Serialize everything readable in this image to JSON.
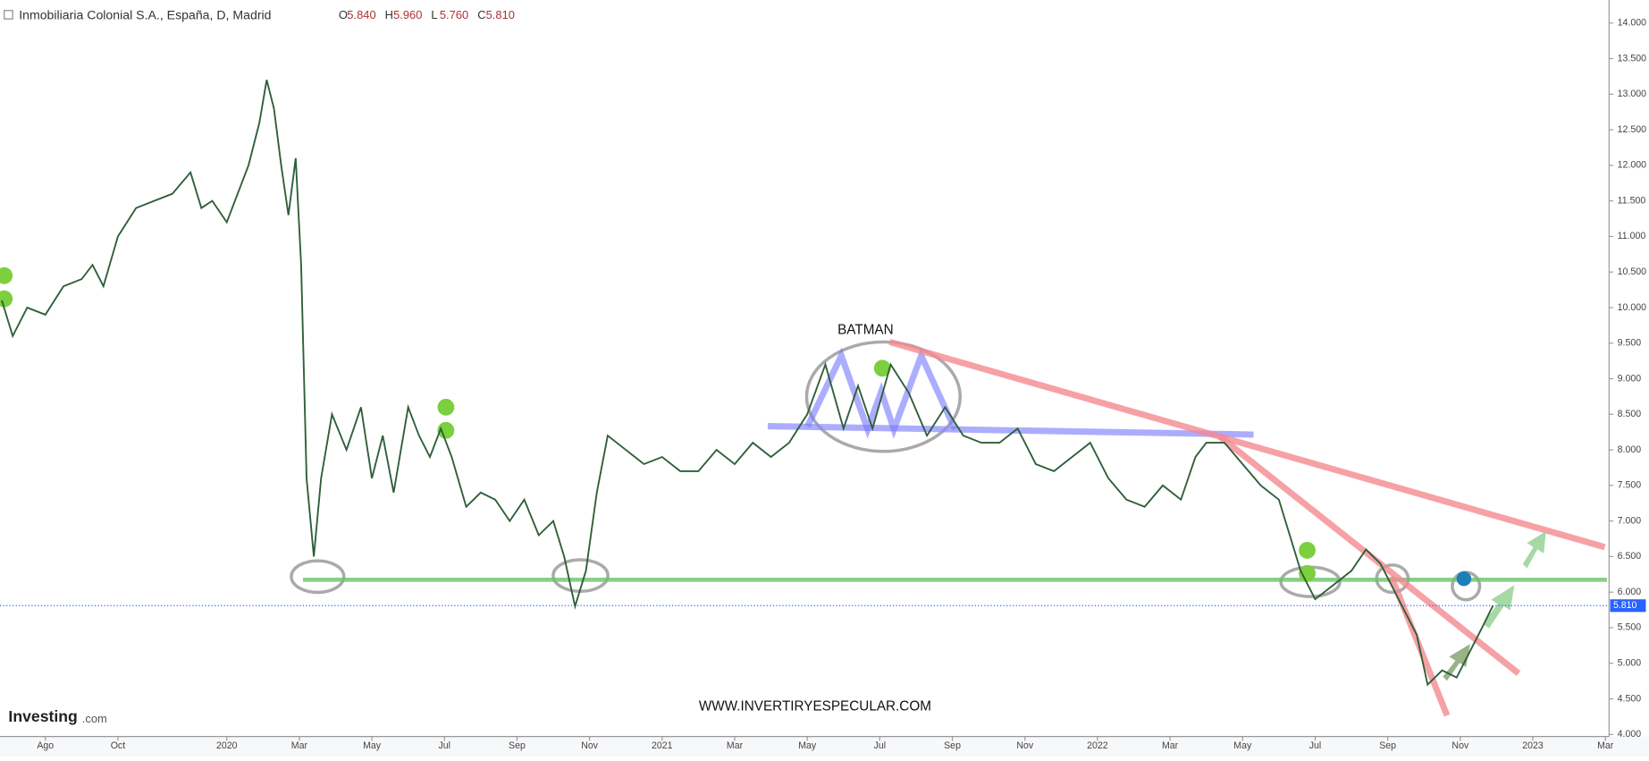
{
  "header": {
    "title": "Inmobiliaria Colonial S.A., España, D, Madrid",
    "ohlc": [
      {
        "label": "O",
        "value": "5.840"
      },
      {
        "label": "H",
        "value": "5.960"
      },
      {
        "label": "L",
        "value": "5.760"
      },
      {
        "label": "C",
        "value": "5.810"
      }
    ]
  },
  "chart_data": {
    "type": "line",
    "annotations": {
      "pattern": "BATMAN",
      "watermark": "WWW.INVERTIRYESPECULAR.COM",
      "logo": "Investing",
      "logo_suffix": ".com"
    },
    "x": [
      -1.2,
      -0.9,
      -0.5,
      0,
      0.5,
      1,
      1.3,
      1.6,
      2,
      2.5,
      3,
      3.5,
      4,
      4.3,
      4.6,
      5,
      5.3,
      5.6,
      5.9,
      6.1,
      6.3,
      6.5,
      6.7,
      6.9,
      7.05,
      7.2,
      7.4,
      7.6,
      7.9,
      8.3,
      8.7,
      9.0,
      9.3,
      9.6,
      10.0,
      10.3,
      10.6,
      10.9,
      11.2,
      11.6,
      12.0,
      12.4,
      12.8,
      13.2,
      13.6,
      14.0,
      14.3,
      14.6,
      14.9,
      15.2,
      15.5,
      16.0,
      16.5,
      17.0,
      17.5,
      18.0,
      18.5,
      19,
      19.5,
      20,
      20.5,
      21,
      21.5,
      22,
      22.4,
      22.8,
      23.3,
      23.8,
      24.3,
      24.8,
      25.3,
      25.8,
      26.3,
      26.8,
      27.3,
      27.8,
      28.3,
      28.8,
      29.3,
      29.8,
      30.3,
      30.8,
      31.3,
      31.7,
      32.0,
      32.5,
      33.0,
      33.5,
      34.0,
      34.3,
      34.6,
      35.0,
      35.5,
      36.0,
      36.4,
      36.8,
      37.1,
      37.4,
      37.8,
      38.1,
      38.5,
      38.9,
      39.3,
      39.6,
      39.9
    ],
    "series": [
      {
        "name": "Inmobiliaria Colonial S.A.",
        "color": "#2f5f3a",
        "values": [
          10.1,
          9.6,
          10.0,
          9.9,
          10.3,
          10.4,
          10.6,
          10.3,
          11.0,
          11.4,
          11.5,
          11.6,
          11.9,
          11.4,
          11.5,
          11.2,
          11.6,
          12.0,
          12.6,
          13.2,
          12.8,
          12.0,
          11.3,
          12.1,
          10.6,
          7.6,
          6.5,
          7.6,
          8.5,
          8.0,
          8.6,
          7.6,
          8.2,
          7.4,
          8.6,
          8.2,
          7.9,
          8.3,
          7.9,
          7.2,
          7.4,
          7.3,
          7.0,
          7.3,
          6.8,
          7.0,
          6.5,
          5.8,
          6.3,
          7.4,
          8.2,
          8.0,
          7.8,
          7.9,
          7.7,
          7.7,
          8.0,
          7.8,
          8.1,
          7.9,
          8.1,
          8.5,
          9.2,
          8.3,
          8.9,
          8.3,
          9.2,
          8.8,
          8.2,
          8.6,
          8.2,
          8.1,
          8.1,
          8.3,
          7.8,
          7.7,
          7.9,
          8.1,
          7.6,
          7.3,
          7.2,
          7.5,
          7.3,
          7.9,
          8.1,
          8.1,
          7.8,
          7.5,
          7.3,
          6.8,
          6.3,
          5.9,
          6.1,
          6.3,
          6.6,
          6.4,
          6.1,
          5.8,
          5.4,
          4.7,
          4.9,
          4.8,
          5.2,
          5.5,
          5.81
        ]
      }
    ],
    "price_line": {
      "value": 5.81,
      "label": "5.810",
      "color": "#2962ff"
    },
    "xlim": [
      -1.25,
      43.1
    ],
    "xticks": [
      {
        "value": 0,
        "label": "Ago"
      },
      {
        "value": 2,
        "label": "Oct"
      },
      {
        "value": 5,
        "label": "2020"
      },
      {
        "value": 7,
        "label": "Mar"
      },
      {
        "value": 9,
        "label": "May"
      },
      {
        "value": 11,
        "label": "Jul"
      },
      {
        "value": 13,
        "label": "Sep"
      },
      {
        "value": 15,
        "label": "Nov"
      },
      {
        "value": 17,
        "label": "2021"
      },
      {
        "value": 19,
        "label": "Mar"
      },
      {
        "value": 21,
        "label": "May"
      },
      {
        "value": 23,
        "label": "Jul"
      },
      {
        "value": 25,
        "label": "Sep"
      },
      {
        "value": 27,
        "label": "Nov"
      },
      {
        "value": 29,
        "label": "2022"
      },
      {
        "value": 31,
        "label": "Mar"
      },
      {
        "value": 33,
        "label": "May"
      },
      {
        "value": 35,
        "label": "Jul"
      },
      {
        "value": 37,
        "label": "Sep"
      },
      {
        "value": 39,
        "label": "Nov"
      },
      {
        "value": 41,
        "label": "2023"
      },
      {
        "value": 43,
        "label": "Mar"
      }
    ],
    "ylim": [
      3.97,
      14.25
    ],
    "yticks": [
      {
        "value": 4,
        "label": "4.000"
      },
      {
        "value": 4.5,
        "label": "4.500"
      },
      {
        "value": 5,
        "label": "5.000"
      },
      {
        "value": 5.5,
        "label": "5.500"
      },
      {
        "value": 6,
        "label": "6.000"
      },
      {
        "value": 6.5,
        "label": "6.500"
      },
      {
        "value": 7,
        "label": "7.000"
      },
      {
        "value": 7.5,
        "label": "7.500"
      },
      {
        "value": 8,
        "label": "8.000"
      },
      {
        "value": 8.5,
        "label": "8.500"
      },
      {
        "value": 9,
        "label": "9.000"
      },
      {
        "value": 9.5,
        "label": "9.500"
      },
      {
        "value": 10,
        "label": "10.000"
      },
      {
        "value": 10.5,
        "label": "10.500"
      },
      {
        "value": 11,
        "label": "11.000"
      },
      {
        "value": 11.5,
        "label": "11.500"
      },
      {
        "value": 12,
        "label": "12.000"
      },
      {
        "value": 12.5,
        "label": "12.500"
      },
      {
        "value": 13,
        "label": "13.000"
      },
      {
        "value": 13.5,
        "label": "13.500"
      },
      {
        "value": 14,
        "label": "14.000"
      }
    ],
    "grid": false
  }
}
